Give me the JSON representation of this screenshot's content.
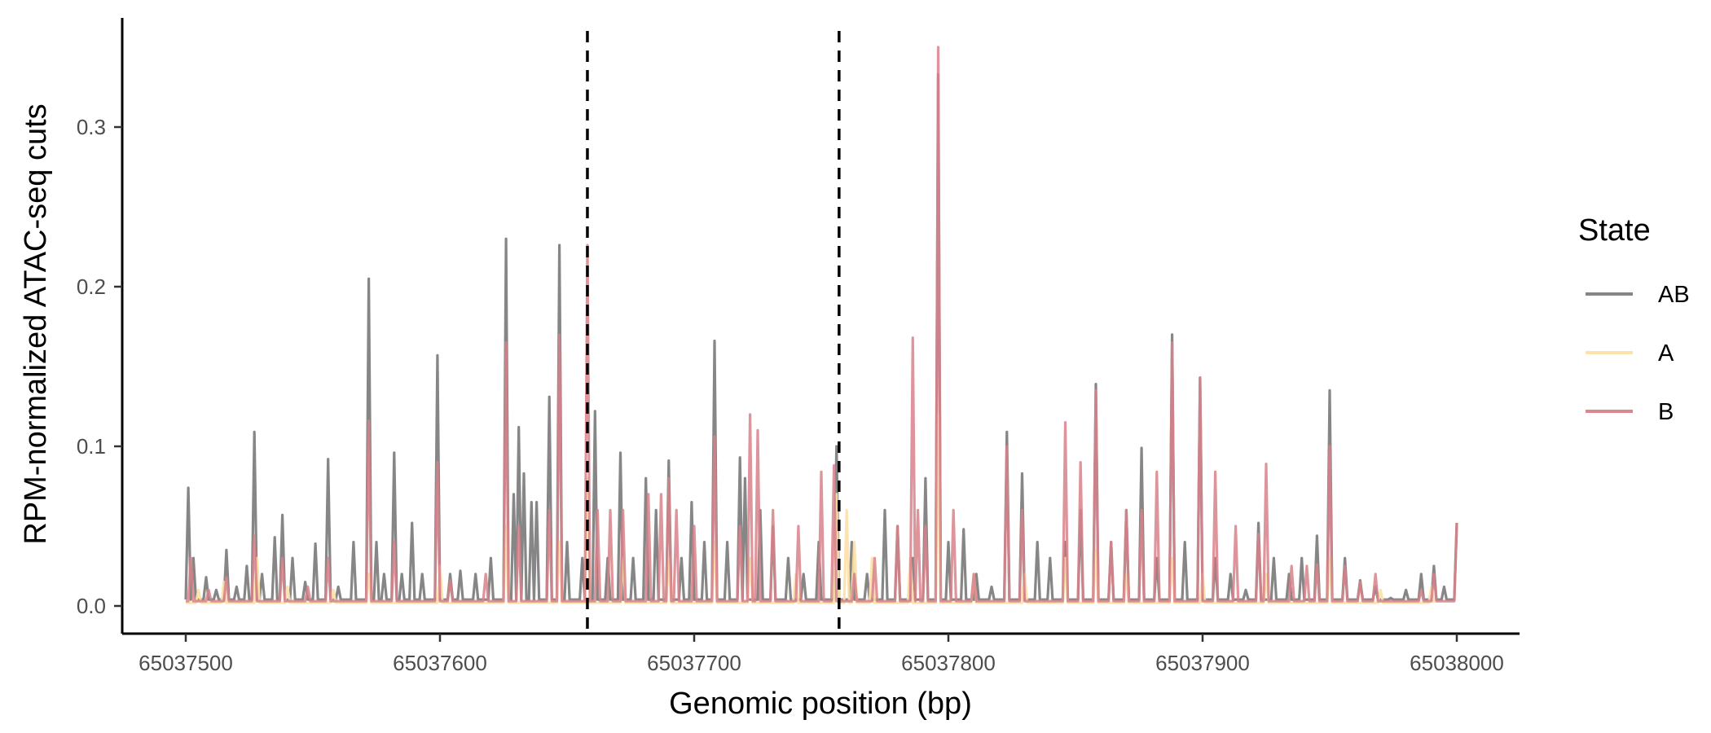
{
  "chart_data": {
    "type": "line",
    "title": "",
    "xlabel": "Genomic position (bp)",
    "ylabel": "RPM-normalized ATAC-seq cuts",
    "xlim": [
      65037500,
      65038000
    ],
    "ylim": [
      0,
      0.35
    ],
    "x_ticks": [
      65037500,
      65037600,
      65037700,
      65037800,
      65037900,
      65038000
    ],
    "x_tick_labels": [
      "65037500",
      "65037600",
      "65037700",
      "65037800",
      "65037900",
      "65038000"
    ],
    "y_ticks": [
      0,
      0.1,
      0.2,
      0.3
    ],
    "y_tick_labels": [
      "0.0",
      "0.1",
      "0.2",
      "0.3"
    ],
    "vlines": [
      65037658,
      65037757
    ],
    "vline_style": "dashed",
    "grid": false,
    "legend": {
      "title": "State",
      "position": "right"
    },
    "series": [
      {
        "name": "AB",
        "color": "#7f7f7f",
        "baseline": 0.004,
        "peaks": [
          [
            65037501,
            0.074
          ],
          [
            65037503,
            0.03
          ],
          [
            65037508,
            0.018
          ],
          [
            65037512,
            0.01
          ],
          [
            65037516,
            0.035
          ],
          [
            65037520,
            0.012
          ],
          [
            65037524,
            0.025
          ],
          [
            65037527,
            0.109
          ],
          [
            65037530,
            0.02
          ],
          [
            65037535,
            0.043
          ],
          [
            65037538,
            0.057
          ],
          [
            65037542,
            0.03
          ],
          [
            65037547,
            0.015
          ],
          [
            65037551,
            0.039
          ],
          [
            65037556,
            0.092
          ],
          [
            65037560,
            0.012
          ],
          [
            65037566,
            0.04
          ],
          [
            65037572,
            0.205
          ],
          [
            65037575,
            0.04
          ],
          [
            65037578,
            0.02
          ],
          [
            65037582,
            0.096
          ],
          [
            65037585,
            0.02
          ],
          [
            65037589,
            0.052
          ],
          [
            65037593,
            0.02
          ],
          [
            65037599,
            0.157
          ],
          [
            65037604,
            0.02
          ],
          [
            65037608,
            0.022
          ],
          [
            65037614,
            0.02
          ],
          [
            65037620,
            0.03
          ],
          [
            65037626,
            0.23
          ],
          [
            65037629,
            0.07
          ],
          [
            65037631,
            0.112
          ],
          [
            65037633,
            0.083
          ],
          [
            65037636,
            0.065
          ],
          [
            65037638,
            0.065
          ],
          [
            65037643,
            0.131
          ],
          [
            65037647,
            0.226
          ],
          [
            65037650,
            0.04
          ],
          [
            65037656,
            0.03
          ],
          [
            65037661,
            0.122
          ],
          [
            65037666,
            0.03
          ],
          [
            65037671,
            0.096
          ],
          [
            65037676,
            0.03
          ],
          [
            65037681,
            0.08
          ],
          [
            65037685,
            0.06
          ],
          [
            65037690,
            0.091
          ],
          [
            65037695,
            0.03
          ],
          [
            65037699,
            0.065
          ],
          [
            65037704,
            0.04
          ],
          [
            65037708,
            0.166
          ],
          [
            65037713,
            0.04
          ],
          [
            65037718,
            0.093
          ],
          [
            65037720,
            0.08
          ],
          [
            65037726,
            0.06
          ],
          [
            65037731,
            0.05
          ],
          [
            65037737,
            0.03
          ],
          [
            65037743,
            0.02
          ],
          [
            65037749,
            0.04
          ],
          [
            65037756,
            0.1
          ],
          [
            65037762,
            0.04
          ],
          [
            65037768,
            0.02
          ],
          [
            65037775,
            0.06
          ],
          [
            65037780,
            0.05
          ],
          [
            65037786,
            0.03
          ],
          [
            65037791,
            0.08
          ],
          [
            65037796,
            0.333
          ],
          [
            65037800,
            0.04
          ],
          [
            65037806,
            0.048
          ],
          [
            65037811,
            0.02
          ],
          [
            65037817,
            0.012
          ],
          [
            65037823,
            0.109
          ],
          [
            65037829,
            0.083
          ],
          [
            65037835,
            0.04
          ],
          [
            65037840,
            0.03
          ],
          [
            65037846,
            0.04
          ],
          [
            65037852,
            0.06
          ],
          [
            65037858,
            0.139
          ],
          [
            65037864,
            0.04
          ],
          [
            65037870,
            0.06
          ],
          [
            65037876,
            0.099
          ],
          [
            65037882,
            0.03
          ],
          [
            65037888,
            0.17
          ],
          [
            65037893,
            0.04
          ],
          [
            65037899,
            0.143
          ],
          [
            65037905,
            0.03
          ],
          [
            65037911,
            0.02
          ],
          [
            65037917,
            0.01
          ],
          [
            65037922,
            0.052
          ],
          [
            65037928,
            0.03
          ],
          [
            65037934,
            0.02
          ],
          [
            65037939,
            0.03
          ],
          [
            65037945,
            0.044
          ],
          [
            65037950,
            0.135
          ],
          [
            65037956,
            0.03
          ],
          [
            65037962,
            0.016
          ],
          [
            65037968,
            0.012
          ],
          [
            65037974,
            0.005
          ],
          [
            65037980,
            0.01
          ],
          [
            65037986,
            0.02
          ],
          [
            65037991,
            0.025
          ],
          [
            65037995,
            0.012
          ],
          [
            65038000,
            0.052
          ]
        ]
      },
      {
        "name": "A",
        "color": "#fce0a6",
        "baseline": 0.002,
        "peaks": [
          [
            65037505,
            0.01
          ],
          [
            65037515,
            0.015
          ],
          [
            65037528,
            0.03
          ],
          [
            65037540,
            0.012
          ],
          [
            65037558,
            0.01
          ],
          [
            65037572,
            0.02
          ],
          [
            65037600,
            0.025
          ],
          [
            65037626,
            0.05
          ],
          [
            65037647,
            0.04
          ],
          [
            65037658,
            0.08
          ],
          [
            65037672,
            0.03
          ],
          [
            65037690,
            0.03
          ],
          [
            65037708,
            0.04
          ],
          [
            65037722,
            0.03
          ],
          [
            65037740,
            0.02
          ],
          [
            65037756,
            0.07
          ],
          [
            65037760,
            0.06
          ],
          [
            65037763,
            0.04
          ],
          [
            65037770,
            0.03
          ],
          [
            65037785,
            0.03
          ],
          [
            65037796,
            0.12
          ],
          [
            65037810,
            0.02
          ],
          [
            65037830,
            0.02
          ],
          [
            65037846,
            0.03
          ],
          [
            65037858,
            0.035
          ],
          [
            65037870,
            0.02
          ],
          [
            65037888,
            0.03
          ],
          [
            65037900,
            0.02
          ],
          [
            65037925,
            0.02
          ],
          [
            65037950,
            0.03
          ],
          [
            65037970,
            0.01
          ],
          [
            65037990,
            0.012
          ]
        ]
      },
      {
        "name": "B",
        "color": "#d8818a",
        "baseline": 0.003,
        "peaks": [
          [
            65037502,
            0.03
          ],
          [
            65037509,
            0.01
          ],
          [
            65037516,
            0.018
          ],
          [
            65037527,
            0.044
          ],
          [
            65037538,
            0.03
          ],
          [
            65037548,
            0.012
          ],
          [
            65037556,
            0.03
          ],
          [
            65037572,
            0.116
          ],
          [
            65037582,
            0.04
          ],
          [
            65037599,
            0.09
          ],
          [
            65037604,
            0.016
          ],
          [
            65037618,
            0.02
          ],
          [
            65037626,
            0.165
          ],
          [
            65037631,
            0.05
          ],
          [
            65037643,
            0.06
          ],
          [
            65037647,
            0.17
          ],
          [
            65037658,
            0.226
          ],
          [
            65037662,
            0.06
          ],
          [
            65037667,
            0.06
          ],
          [
            65037672,
            0.06
          ],
          [
            65037682,
            0.07
          ],
          [
            65037687,
            0.07
          ],
          [
            65037690,
            0.08
          ],
          [
            65037693,
            0.06
          ],
          [
            65037700,
            0.05
          ],
          [
            65037708,
            0.106
          ],
          [
            65037718,
            0.05
          ],
          [
            65037722,
            0.12
          ],
          [
            65037725,
            0.11
          ],
          [
            65037731,
            0.06
          ],
          [
            65037741,
            0.05
          ],
          [
            65037750,
            0.084
          ],
          [
            65037755,
            0.088
          ],
          [
            65037763,
            0.02
          ],
          [
            65037771,
            0.03
          ],
          [
            65037780,
            0.05
          ],
          [
            65037786,
            0.168
          ],
          [
            65037788,
            0.06
          ],
          [
            65037791,
            0.05
          ],
          [
            65037796,
            0.35
          ],
          [
            65037802,
            0.06
          ],
          [
            65037810,
            0.02
          ],
          [
            65037823,
            0.1
          ],
          [
            65037829,
            0.06
          ],
          [
            65037846,
            0.115
          ],
          [
            65037852,
            0.09
          ],
          [
            65037858,
            0.135
          ],
          [
            65037864,
            0.04
          ],
          [
            65037870,
            0.06
          ],
          [
            65037876,
            0.06
          ],
          [
            65037882,
            0.084
          ],
          [
            65037888,
            0.165
          ],
          [
            65037899,
            0.143
          ],
          [
            65037905,
            0.084
          ],
          [
            65037913,
            0.05
          ],
          [
            65037922,
            0.045
          ],
          [
            65037925,
            0.089
          ],
          [
            65037935,
            0.025
          ],
          [
            65037941,
            0.025
          ],
          [
            65037945,
            0.026
          ],
          [
            65037950,
            0.1
          ],
          [
            65037956,
            0.025
          ],
          [
            65037962,
            0.015
          ],
          [
            65037968,
            0.02
          ],
          [
            65037986,
            0.01
          ],
          [
            65037991,
            0.02
          ],
          [
            65038000,
            0.052
          ]
        ]
      }
    ]
  }
}
